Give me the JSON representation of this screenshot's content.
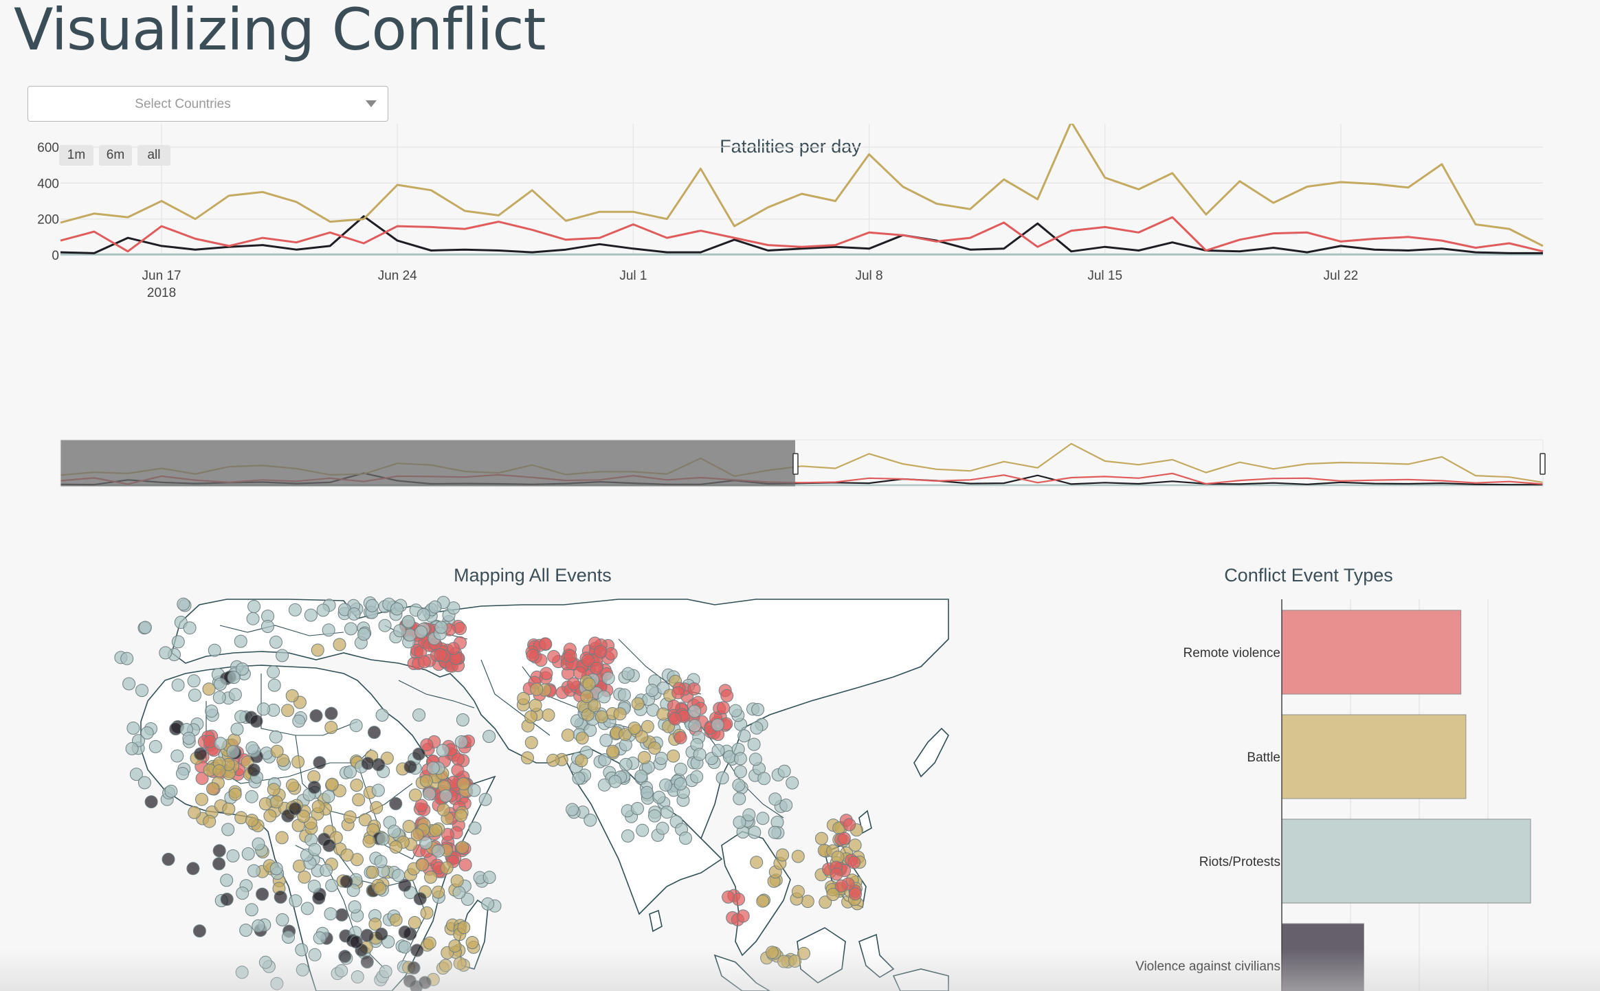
{
  "page": {
    "title": "Visualizing Conflict"
  },
  "country_select": {
    "placeholder": "Select Countries"
  },
  "range_buttons": [
    "1m",
    "6m",
    "all"
  ],
  "colors": {
    "battle": "#c4a960",
    "remote_violence": "#e05c5c",
    "violence_against_civilians": "#1f1d24",
    "riots_protests": "#a9c2c2"
  },
  "fatalities_chart": {
    "title": "Fatalities per day",
    "y_ticks": [
      "0",
      "200",
      "400",
      "600"
    ],
    "x_ticks": [
      {
        "label": "Jun 17",
        "sub": "2018"
      },
      {
        "label": "Jun 24",
        "sub": ""
      },
      {
        "label": "Jul 1",
        "sub": ""
      },
      {
        "label": "Jul 8",
        "sub": ""
      },
      {
        "label": "Jul 15",
        "sub": ""
      },
      {
        "label": "Jul 22",
        "sub": ""
      }
    ]
  },
  "map": {
    "title": "Mapping All Events"
  },
  "bar_chart": {
    "title": "Conflict Event Types"
  },
  "chart_data": [
    {
      "type": "line",
      "title": "Fatalities per day",
      "x_start": "2018-06-14",
      "x_end": "2018-07-28",
      "ylim": [
        0,
        760
      ],
      "grid": true,
      "series": [
        {
          "color": "#c4a960",
          "values": [
            180,
            230,
            210,
            300,
            200,
            330,
            350,
            295,
            185,
            200,
            390,
            360,
            245,
            220,
            360,
            190,
            240,
            240,
            200,
            480,
            160,
            265,
            340,
            300,
            560,
            380,
            285,
            255,
            420,
            310,
            740,
            430,
            365,
            455,
            225,
            410,
            290,
            380,
            405,
            395,
            375,
            505,
            170,
            145,
            50
          ]
        },
        {
          "color": "#e05c5c",
          "values": [
            80,
            130,
            20,
            160,
            90,
            50,
            95,
            70,
            125,
            65,
            160,
            155,
            145,
            185,
            140,
            85,
            95,
            170,
            95,
            135,
            95,
            55,
            45,
            55,
            125,
            110,
            75,
            95,
            180,
            45,
            135,
            155,
            125,
            210,
            25,
            85,
            120,
            125,
            75,
            90,
            100,
            80,
            40,
            65,
            20
          ]
        },
        {
          "color": "#1f1d24",
          "values": [
            15,
            10,
            95,
            50,
            30,
            45,
            55,
            30,
            50,
            215,
            80,
            25,
            30,
            25,
            15,
            30,
            60,
            35,
            15,
            15,
            85,
            25,
            35,
            45,
            35,
            110,
            80,
            30,
            35,
            175,
            20,
            45,
            25,
            70,
            25,
            20,
            40,
            15,
            50,
            30,
            25,
            35,
            15,
            10,
            10
          ]
        },
        {
          "color": "#a9c2c2",
          "values": [
            3,
            3,
            3,
            3,
            3,
            3,
            3,
            3,
            3,
            3,
            3,
            3,
            3,
            3,
            3,
            3,
            3,
            3,
            3,
            3,
            3,
            3,
            3,
            3,
            3,
            3,
            3,
            3,
            3,
            3,
            3,
            3,
            3,
            3,
            3,
            3,
            3,
            3,
            3,
            3,
            3,
            3,
            3,
            3,
            3
          ]
        }
      ]
    },
    {
      "type": "bar",
      "title": "Conflict Event Types",
      "categories": [
        "Remote violence",
        "Battle",
        "Riots/Protests",
        "Violence against civilians"
      ],
      "values": [
        0.72,
        0.74,
        1.0,
        0.33
      ],
      "colors": [
        "#e88f8f",
        "#d8c48f",
        "#c2d3d2",
        "#65606b"
      ]
    }
  ]
}
